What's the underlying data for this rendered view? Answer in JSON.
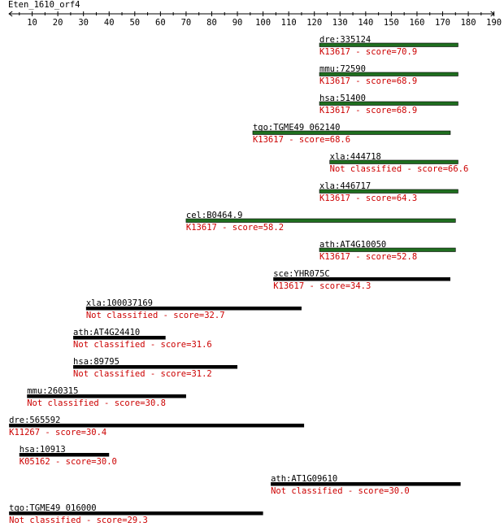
{
  "title": "Eten_1610_orf4",
  "axis": {
    "min": 1,
    "max": 190,
    "tick_labels": [
      "10",
      "20",
      "30",
      "40",
      "50",
      "60",
      "70",
      "80",
      "90",
      "100",
      "110",
      "120",
      "130",
      "140",
      "150",
      "160",
      "170",
      "180",
      "190"
    ]
  },
  "colors": {
    "axis": "#000000",
    "name_text": "#000000",
    "score_text": "#cc0000",
    "bar_classified_green": "#1f6e1f",
    "bar_other": "#000000"
  },
  "chart_data": {
    "type": "alignment-map",
    "title": "Eten_1610_orf4",
    "hits": [
      {
        "name": "dre:335124",
        "annotation": "K13617 - score=70.9",
        "start": 122,
        "end": 176,
        "bar_color": "green"
      },
      {
        "name": "mmu:72590",
        "annotation": "K13617 - score=68.9",
        "start": 122,
        "end": 176,
        "bar_color": "green"
      },
      {
        "name": "hsa:51400",
        "annotation": "K13617 - score=68.9",
        "start": 122,
        "end": 176,
        "bar_color": "green"
      },
      {
        "name": "tgo:TGME49_062140",
        "annotation": "K13617 - score=68.6",
        "start": 96,
        "end": 173,
        "bar_color": "green"
      },
      {
        "name": "xla:444718",
        "annotation": "Not classified - score=66.6",
        "start": 126,
        "end": 176,
        "bar_color": "green"
      },
      {
        "name": "xla:446717",
        "annotation": "K13617 - score=64.3",
        "start": 122,
        "end": 176,
        "bar_color": "green"
      },
      {
        "name": "cel:B0464.9",
        "annotation": "K13617 - score=58.2",
        "start": 70,
        "end": 175,
        "bar_color": "green"
      },
      {
        "name": "ath:AT4G10050",
        "annotation": "K13617 - score=52.8",
        "start": 122,
        "end": 175,
        "bar_color": "green"
      },
      {
        "name": "sce:YHR075C",
        "annotation": "K13617 - score=34.3",
        "start": 104,
        "end": 173,
        "bar_color": "black"
      },
      {
        "name": "xla:100037169",
        "annotation": "Not classified - score=32.7",
        "start": 31,
        "end": 115,
        "bar_color": "black"
      },
      {
        "name": "ath:AT4G24410",
        "annotation": "Not classified - score=31.6",
        "start": 26,
        "end": 62,
        "bar_color": "black"
      },
      {
        "name": "hsa:89795",
        "annotation": "Not classified - score=31.2",
        "start": 26,
        "end": 90,
        "bar_color": "black"
      },
      {
        "name": "mmu:260315",
        "annotation": "Not classified - score=30.8",
        "start": 8,
        "end": 70,
        "bar_color": "black"
      },
      {
        "name": "dre:565592",
        "annotation": "K11267 - score=30.4",
        "start": 1,
        "end": 116,
        "bar_color": "black"
      },
      {
        "name": "hsa:10913",
        "annotation": "K05162 - score=30.0",
        "start": 5,
        "end": 40,
        "bar_color": "black"
      },
      {
        "name": "ath:AT1G09610",
        "annotation": "Not classified - score=30.0",
        "start": 103,
        "end": 177,
        "bar_color": "black"
      },
      {
        "name": "tgo:TGME49_016000",
        "annotation": "Not classified - score=29.3",
        "start": 1,
        "end": 100,
        "bar_color": "black"
      }
    ]
  }
}
